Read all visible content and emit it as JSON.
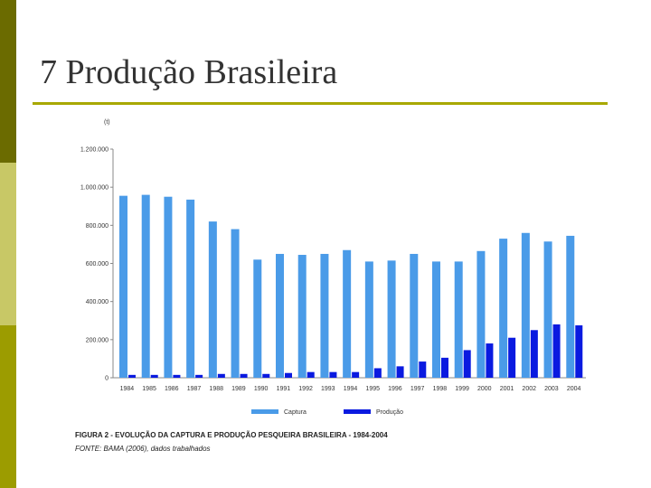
{
  "slide": {
    "title": "7 Produção Brasileira",
    "caption_figure": "FIGURA 2 - EVOLUÇÃO DA CAPTURA E PRODUÇÃO PESQUEIRA BRASILEIRA - 1984-2004",
    "caption_source": "FONTE: BAMA (2006), dados trabalhados"
  },
  "chart_data": {
    "type": "bar",
    "title": "",
    "xlabel": "",
    "ylabel": "(t)",
    "ylim": [
      0,
      1200000
    ],
    "yticks": [
      "0",
      "200.000",
      "400.000",
      "600.000",
      "800.000",
      "1.000.000",
      "1.200.000"
    ],
    "ytick_values": [
      0,
      200000,
      400000,
      600000,
      800000,
      1000000,
      1200000
    ],
    "categories": [
      "1984",
      "1985",
      "1986",
      "1987",
      "1988",
      "1989",
      "1990",
      "1991",
      "1992",
      "1993",
      "1994",
      "1995",
      "1996",
      "1997",
      "1998",
      "1999",
      "2000",
      "2001",
      "2002",
      "2003",
      "2004"
    ],
    "series": [
      {
        "name": "Captura",
        "color": "#4a9be8",
        "values": [
          955000,
          960000,
          950000,
          935000,
          820000,
          780000,
          620000,
          650000,
          645000,
          650000,
          670000,
          610000,
          615000,
          650000,
          610000,
          610000,
          665000,
          730000,
          760000,
          715000,
          745000
        ]
      },
      {
        "name": "Produção",
        "color": "#0a1ae0",
        "values": [
          15000,
          15000,
          15000,
          15000,
          20000,
          20000,
          20000,
          25000,
          30000,
          30000,
          30000,
          50000,
          60000,
          85000,
          105000,
          145000,
          180000,
          210000,
          250000,
          280000,
          275000
        ]
      }
    ],
    "legend_position": "bottom",
    "grid": false
  }
}
